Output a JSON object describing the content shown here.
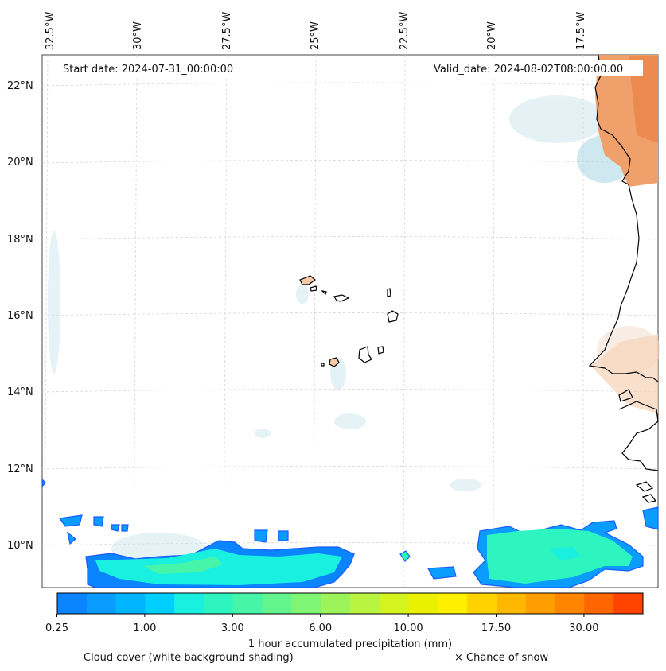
{
  "map": {
    "start_date": "Start date: 2024-07-31_00:00:00",
    "valid_date": "Valid_date: 2024-08-02T08:00:00.00",
    "lon_labels": [
      "32.5°W",
      "30°W",
      "27.5°W",
      "25°W",
      "22.5°W",
      "20°W",
      "17.5°W"
    ],
    "lat_labels": [
      "22°N",
      "20°N",
      "18°N",
      "16°N",
      "14°N",
      "12°N",
      "10°N"
    ]
  },
  "colorbar": {
    "ticks": [
      "0.25",
      "1.00",
      "3.00",
      "6.00",
      "10.00",
      "17.50",
      "30.00"
    ],
    "colors": [
      "#0a84ff",
      "#0a9cff",
      "#00b4ff",
      "#00cfff",
      "#19f0e0",
      "#2ef5c0",
      "#46f5a8",
      "#62f58e",
      "#80f474",
      "#9cf45a",
      "#b8f440",
      "#d4f420",
      "#eaf000",
      "#fff000",
      "#ffd200",
      "#ffb800",
      "#ff9e00",
      "#ff8400",
      "#ff6600",
      "#ff4400"
    ],
    "label": "1 hour accumulated precipitation (mm)"
  },
  "legend": {
    "cloud_cover": "Cloud cover (white background shading)",
    "snow": "× Chance of snow"
  }
}
